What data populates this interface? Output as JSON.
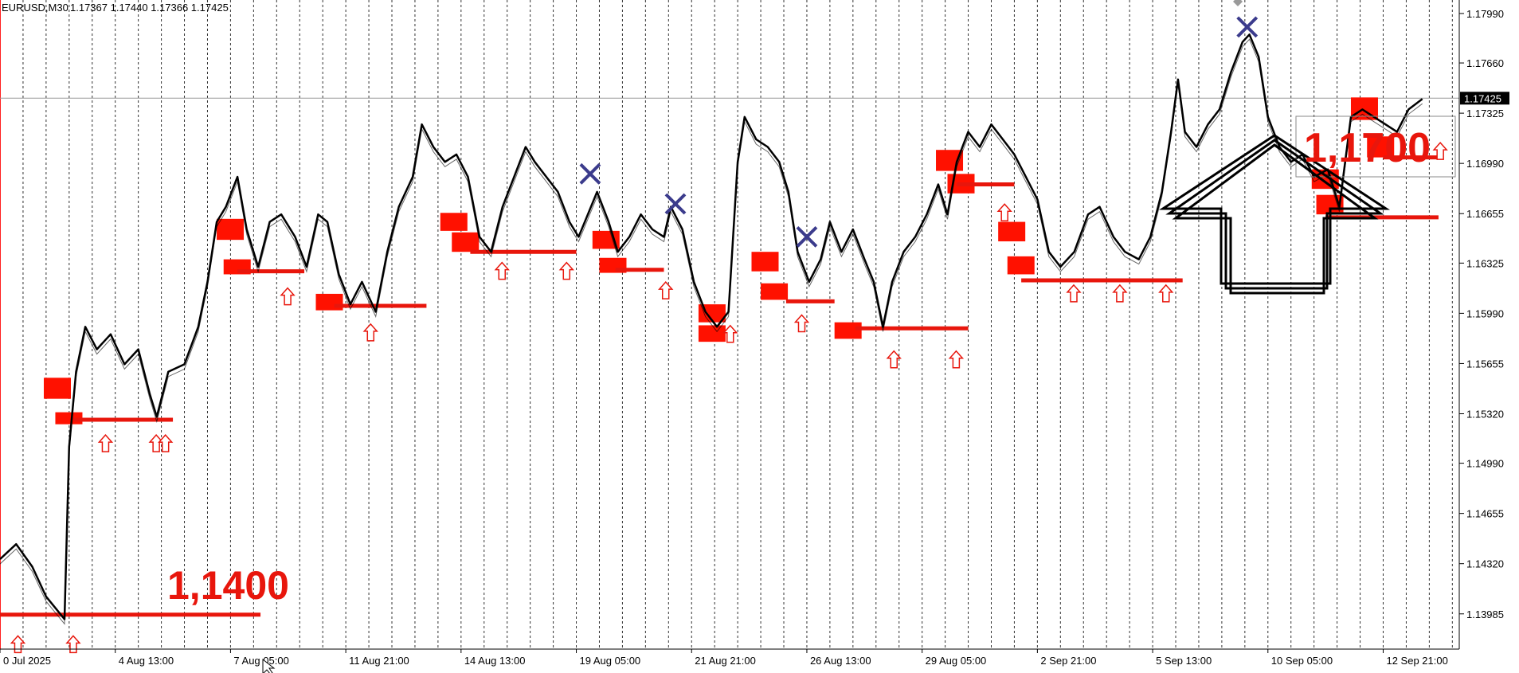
{
  "header": {
    "symbol": "EURUSD,M30",
    "ohlc": "1.17367 1.17440 1.17366 1.17425"
  },
  "price_tag": "1.17425",
  "annotations": {
    "low_level": "1,1400",
    "high_level": "1,1700"
  },
  "colors": {
    "candle": "#000000",
    "zone": "#ff1100",
    "level": "#e8160c",
    "cross": "#3b3b8c",
    "grid": "#000000",
    "big_arrow": "#000000"
  },
  "chart_data": {
    "type": "line",
    "title": "",
    "symbol": "EURUSD",
    "timeframe": "M30",
    "xlabel": "",
    "ylabel": "",
    "x_ticks": [
      "0 Jul 2025",
      "4 Aug 13:00",
      "7 Aug 05:00",
      "11 Aug 21:00",
      "14 Aug 13:00",
      "19 Aug 05:00",
      "21 Aug 21:00",
      "26 Aug 13:00",
      "29 Aug 05:00",
      "2 Sep 21:00",
      "5 Sep 13:00",
      "10 Sep 05:00",
      "12 Sep 21:00"
    ],
    "y_ticks": [
      "1.17990",
      "1.17660",
      "1.17325",
      "1.16990",
      "1.16655",
      "1.16325",
      "1.15990",
      "1.15655",
      "1.15320",
      "1.14990",
      "1.14655",
      "1.14320",
      "1.13985"
    ],
    "y_tick_values": [
      1.1799,
      1.1766,
      1.17325,
      1.1699,
      1.16655,
      1.16325,
      1.1599,
      1.15655,
      1.1532,
      1.1499,
      1.14655,
      1.1432,
      1.13985
    ],
    "ylim": [
      1.1375,
      1.1808
    ],
    "grid": "vertical-dashed",
    "price_line": [
      [
        0.0,
        1.1435
      ],
      [
        0.7,
        1.1445
      ],
      [
        1.4,
        1.143
      ],
      [
        2.0,
        1.141
      ],
      [
        2.8,
        1.1395
      ],
      [
        3.0,
        1.151
      ],
      [
        3.3,
        1.156
      ],
      [
        3.7,
        1.159
      ],
      [
        4.2,
        1.1575
      ],
      [
        4.8,
        1.1585
      ],
      [
        5.4,
        1.1565
      ],
      [
        6.0,
        1.1575
      ],
      [
        6.5,
        1.1545
      ],
      [
        6.8,
        1.153
      ],
      [
        7.3,
        1.156
      ],
      [
        8.0,
        1.1565
      ],
      [
        8.6,
        1.159
      ],
      [
        9.0,
        1.162
      ],
      [
        9.4,
        1.166
      ],
      [
        9.8,
        1.167
      ],
      [
        10.3,
        1.169
      ],
      [
        10.7,
        1.1655
      ],
      [
        11.2,
        1.163
      ],
      [
        11.7,
        1.166
      ],
      [
        12.2,
        1.1665
      ],
      [
        12.8,
        1.165
      ],
      [
        13.3,
        1.163
      ],
      [
        13.8,
        1.1665
      ],
      [
        14.2,
        1.166
      ],
      [
        14.7,
        1.1625
      ],
      [
        15.2,
        1.1605
      ],
      [
        15.7,
        1.162
      ],
      [
        16.3,
        1.16
      ],
      [
        16.8,
        1.164
      ],
      [
        17.3,
        1.167
      ],
      [
        17.9,
        1.169
      ],
      [
        18.3,
        1.1725
      ],
      [
        18.8,
        1.171
      ],
      [
        19.3,
        1.17
      ],
      [
        19.8,
        1.1705
      ],
      [
        20.3,
        1.169
      ],
      [
        20.8,
        1.165
      ],
      [
        21.3,
        1.164
      ],
      [
        21.8,
        1.167
      ],
      [
        22.3,
        1.169
      ],
      [
        22.8,
        1.171
      ],
      [
        23.2,
        1.17
      ],
      [
        23.7,
        1.169
      ],
      [
        24.2,
        1.168
      ],
      [
        24.7,
        1.166
      ],
      [
        25.1,
        1.165
      ],
      [
        25.5,
        1.1665
      ],
      [
        25.9,
        1.168
      ],
      [
        26.4,
        1.166
      ],
      [
        26.8,
        1.164
      ],
      [
        27.3,
        1.165
      ],
      [
        27.8,
        1.1665
      ],
      [
        28.3,
        1.1655
      ],
      [
        28.8,
        1.165
      ],
      [
        29.1,
        1.167
      ],
      [
        29.6,
        1.1655
      ],
      [
        30.1,
        1.162
      ],
      [
        30.6,
        1.16
      ],
      [
        31.1,
        1.159
      ],
      [
        31.6,
        1.16
      ],
      [
        32.0,
        1.17
      ],
      [
        32.3,
        1.173
      ],
      [
        32.8,
        1.1715
      ],
      [
        33.3,
        1.171
      ],
      [
        33.8,
        1.17
      ],
      [
        34.2,
        1.168
      ],
      [
        34.6,
        1.164
      ],
      [
        35.1,
        1.162
      ],
      [
        35.6,
        1.1635
      ],
      [
        36.0,
        1.166
      ],
      [
        36.5,
        1.164
      ],
      [
        37.0,
        1.1655
      ],
      [
        37.5,
        1.1635
      ],
      [
        37.9,
        1.162
      ],
      [
        38.3,
        1.159
      ],
      [
        38.7,
        1.162
      ],
      [
        39.2,
        1.164
      ],
      [
        39.7,
        1.165
      ],
      [
        40.2,
        1.1665
      ],
      [
        40.7,
        1.1685
      ],
      [
        41.1,
        1.1665
      ],
      [
        41.5,
        1.17
      ],
      [
        42.0,
        1.172
      ],
      [
        42.5,
        1.171
      ],
      [
        43.0,
        1.1725
      ],
      [
        43.5,
        1.1715
      ],
      [
        44.0,
        1.1705
      ],
      [
        44.5,
        1.169
      ],
      [
        45.0,
        1.1675
      ],
      [
        45.5,
        1.164
      ],
      [
        46.0,
        1.163
      ],
      [
        46.6,
        1.164
      ],
      [
        47.2,
        1.1665
      ],
      [
        47.7,
        1.167
      ],
      [
        48.3,
        1.165
      ],
      [
        48.8,
        1.164
      ],
      [
        49.4,
        1.1635
      ],
      [
        49.9,
        1.165
      ],
      [
        50.4,
        1.168
      ],
      [
        50.8,
        1.172
      ],
      [
        51.1,
        1.1755
      ],
      [
        51.4,
        1.172
      ],
      [
        51.9,
        1.171
      ],
      [
        52.4,
        1.1725
      ],
      [
        52.9,
        1.1735
      ],
      [
        53.4,
        1.176
      ],
      [
        53.9,
        1.178
      ],
      [
        54.2,
        1.1785
      ],
      [
        54.6,
        1.177
      ],
      [
        55.0,
        1.173
      ],
      [
        55.5,
        1.171
      ],
      [
        56.0,
        1.17
      ],
      [
        56.5,
        1.1705
      ],
      [
        57.0,
        1.169
      ],
      [
        57.6,
        1.1695
      ],
      [
        58.1,
        1.167
      ],
      [
        58.6,
        1.173
      ],
      [
        59.1,
        1.1735
      ],
      [
        59.6,
        1.173
      ],
      [
        60.1,
        1.1725
      ],
      [
        60.6,
        1.172
      ],
      [
        61.1,
        1.1735
      ],
      [
        61.7,
        1.1742
      ]
    ],
    "supply_demand_zones": [
      [
        1.9,
        1.1542,
        1.1556
      ],
      [
        2.4,
        1.1525,
        1.1533
      ],
      [
        9.4,
        1.1648,
        1.1662
      ],
      [
        9.7,
        1.1625,
        1.1635
      ],
      [
        13.7,
        1.1601,
        1.1612
      ],
      [
        19.1,
        1.1654,
        1.1666
      ],
      [
        19.6,
        1.164,
        1.1653
      ],
      [
        25.7,
        1.1642,
        1.1654
      ],
      [
        26.0,
        1.1626,
        1.1636
      ],
      [
        30.3,
        1.1593,
        1.1605
      ],
      [
        30.3,
        1.158,
        1.1591
      ],
      [
        32.6,
        1.1627,
        1.164
      ],
      [
        33.0,
        1.1608,
        1.1619
      ],
      [
        36.2,
        1.1582,
        1.1593
      ],
      [
        40.6,
        1.1694,
        1.1708
      ],
      [
        41.1,
        1.1679,
        1.1692
      ],
      [
        43.3,
        1.1647,
        1.166
      ],
      [
        43.7,
        1.1625,
        1.1637
      ],
      [
        56.9,
        1.1682,
        1.1695
      ],
      [
        57.1,
        1.1665,
        1.1678
      ],
      [
        58.6,
        1.1728,
        1.1743
      ],
      [
        59.3,
        1.1703,
        1.1717
      ]
    ],
    "level_lines": [
      [
        0.0,
        11.3,
        1.1398
      ],
      [
        3.2,
        7.5,
        1.1528
      ],
      [
        10.3,
        13.2,
        1.1627
      ],
      [
        14.5,
        18.5,
        1.1604
      ],
      [
        20.4,
        25.0,
        1.164
      ],
      [
        26.7,
        28.8,
        1.1628
      ],
      [
        34.1,
        36.2,
        1.1607
      ],
      [
        37.1,
        42.0,
        1.1589
      ],
      [
        41.5,
        44.0,
        1.1685
      ],
      [
        44.3,
        51.3,
        1.1621
      ],
      [
        57.5,
        62.4,
        1.1663
      ],
      [
        60.0,
        62.4,
        1.1703
      ]
    ],
    "signal_arrows": [
      [
        0.5,
        1.1378
      ],
      [
        2.9,
        1.1378
      ],
      [
        4.3,
        1.1512
      ],
      [
        6.5,
        1.1512
      ],
      [
        6.9,
        1.1512
      ],
      [
        12.2,
        1.161
      ],
      [
        15.8,
        1.1586
      ],
      [
        21.5,
        1.1627
      ],
      [
        24.3,
        1.1627
      ],
      [
        28.6,
        1.1614
      ],
      [
        31.4,
        1.1585
      ],
      [
        34.5,
        1.1592
      ],
      [
        38.5,
        1.1568
      ],
      [
        41.2,
        1.1568
      ],
      [
        43.3,
        1.1666
      ],
      [
        46.3,
        1.1612
      ],
      [
        48.3,
        1.1612
      ],
      [
        50.3,
        1.1612
      ],
      [
        62.2,
        1.1707
      ]
    ],
    "x_marks": [
      [
        25.6,
        1.1692
      ],
      [
        29.3,
        1.1672
      ],
      [
        35.0,
        1.165
      ],
      [
        54.1,
        1.179
      ]
    ],
    "current_price": 1.17425
  }
}
